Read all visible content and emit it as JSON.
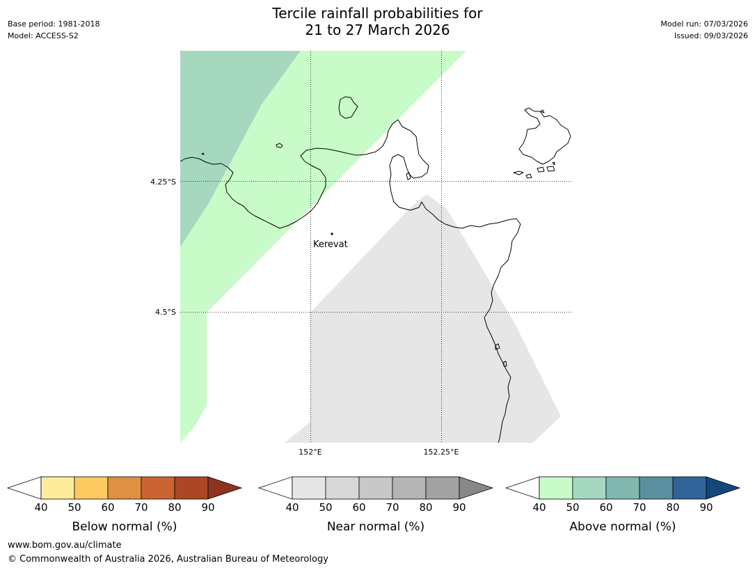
{
  "title": {
    "line1": "Tercile rainfall probabilities for",
    "line2": "21 to 27 March 2026"
  },
  "meta": {
    "base_period": "Base period: 1981-2018",
    "model": "Model: ACCESS-S2",
    "model_run": "Model run: 07/03/2026",
    "issued": "Issued: 09/03/2026"
  },
  "map": {
    "lat_labels": [
      "4.25°S",
      "4.5°S"
    ],
    "lon_labels": [
      "152°E",
      "152.25°E"
    ],
    "places": [
      {
        "name": "Kerevat"
      }
    ],
    "region_colors": {
      "above_50_60": "#a6d8c0",
      "above_40_50": "#c9fbc9",
      "near_40_50": "#e6e6e6"
    }
  },
  "colorbars": [
    {
      "title": "Below normal (%)",
      "ticks": [
        "40",
        "50",
        "60",
        "70",
        "80",
        "90"
      ],
      "colors": [
        "#ffeb9c",
        "#fdca62",
        "#e09043",
        "#cc6332",
        "#ad4626",
        "#8f3220"
      ]
    },
    {
      "title": "Near normal (%)",
      "ticks": [
        "40",
        "50",
        "60",
        "70",
        "80",
        "90"
      ],
      "colors": [
        "#e6e6e6",
        "#d8d8d8",
        "#c8c8c8",
        "#b5b5b5",
        "#a2a2a2",
        "#888888"
      ]
    },
    {
      "title": "Above normal (%)",
      "ticks": [
        "40",
        "50",
        "60",
        "70",
        "80",
        "90"
      ],
      "colors": [
        "#c9fbc9",
        "#a6d8c0",
        "#80b8b0",
        "#5a90a0",
        "#306499",
        "#12487c"
      ]
    }
  ],
  "footer": {
    "url": "www.bom.gov.au/climate",
    "copyright": "© Commonwealth of Australia 2026, Australian Bureau of Meteorology"
  }
}
